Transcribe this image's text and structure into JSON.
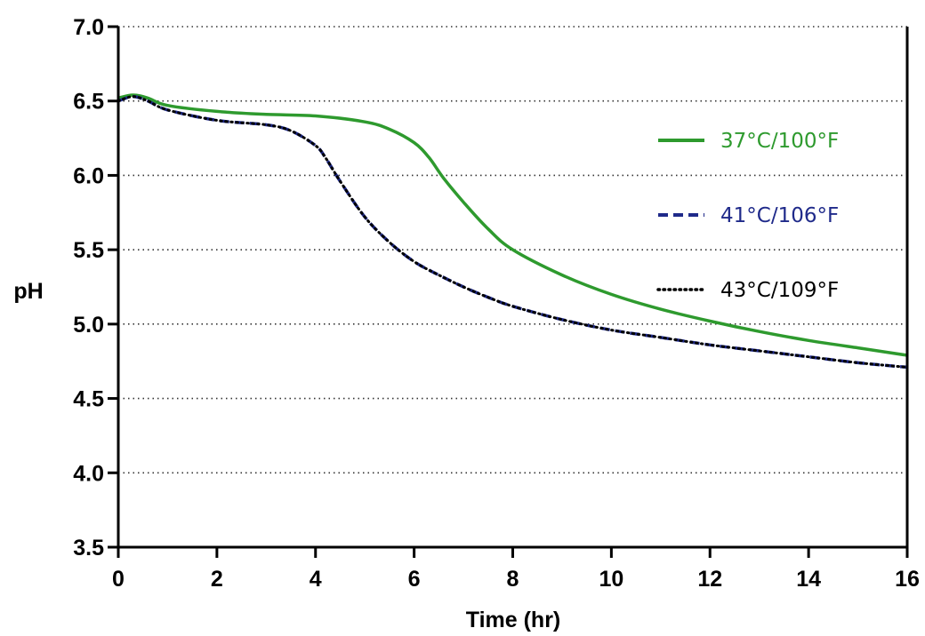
{
  "chart_data": {
    "type": "line",
    "xlabel": "Time (hr)",
    "ylabel": "pH",
    "xlim": [
      0,
      16
    ],
    "ylim": [
      3.5,
      7.0
    ],
    "x_ticks": [
      "0",
      "2",
      "4",
      "6",
      "8",
      "10",
      "12",
      "14",
      "16"
    ],
    "y_ticks": [
      "3.5",
      "4.0",
      "4.5",
      "5.0",
      "5.5",
      "6.0",
      "6.5",
      "7.0"
    ],
    "grid": "horizontal dotted",
    "legend_position": "right",
    "series": [
      {
        "name": "37°C/100°F",
        "color": "#2e9a2e",
        "style": "solid",
        "x": [
          0,
          0.3,
          0.6,
          1.0,
          2.0,
          3.0,
          4.0,
          5.0,
          5.5,
          6.0,
          6.3,
          6.6,
          7.0,
          7.5,
          8.0,
          9.0,
          10.0,
          11.0,
          12.0,
          13.0,
          14.0,
          15.0,
          16.0
        ],
        "y": [
          6.52,
          6.54,
          6.52,
          6.47,
          6.43,
          6.41,
          6.4,
          6.36,
          6.31,
          6.22,
          6.12,
          5.98,
          5.82,
          5.64,
          5.5,
          5.33,
          5.2,
          5.1,
          5.02,
          4.95,
          4.89,
          4.84,
          4.79
        ]
      },
      {
        "name": "41°C/106°F",
        "color": "#1f2a8a",
        "style": "dashed",
        "x": [
          0,
          0.3,
          0.6,
          1.0,
          2.0,
          3.0,
          3.5,
          4.0,
          4.2,
          4.5,
          5.0,
          5.5,
          6.0,
          6.5,
          7.0,
          7.5,
          8.0,
          9.0,
          10.0,
          11.0,
          12.0,
          13.0,
          14.0,
          15.0,
          16.0
        ],
        "y": [
          6.5,
          6.53,
          6.5,
          6.44,
          6.37,
          6.34,
          6.3,
          6.2,
          6.12,
          5.96,
          5.72,
          5.55,
          5.42,
          5.33,
          5.25,
          5.18,
          5.12,
          5.03,
          4.96,
          4.91,
          4.86,
          4.82,
          4.78,
          4.74,
          4.71
        ]
      },
      {
        "name": "43°C/109°F",
        "color": "#000000",
        "style": "dotted",
        "x": [
          0,
          0.3,
          0.6,
          1.0,
          2.0,
          3.0,
          3.5,
          4.0,
          4.2,
          4.5,
          5.0,
          5.5,
          6.0,
          6.5,
          7.0,
          7.5,
          8.0,
          9.0,
          10.0,
          11.0,
          12.0,
          13.0,
          14.0,
          15.0,
          16.0
        ],
        "y": [
          6.5,
          6.53,
          6.5,
          6.44,
          6.37,
          6.34,
          6.3,
          6.2,
          6.12,
          5.96,
          5.72,
          5.55,
          5.42,
          5.33,
          5.25,
          5.18,
          5.12,
          5.03,
          4.96,
          4.91,
          4.86,
          4.82,
          4.78,
          4.74,
          4.71
        ]
      }
    ]
  }
}
